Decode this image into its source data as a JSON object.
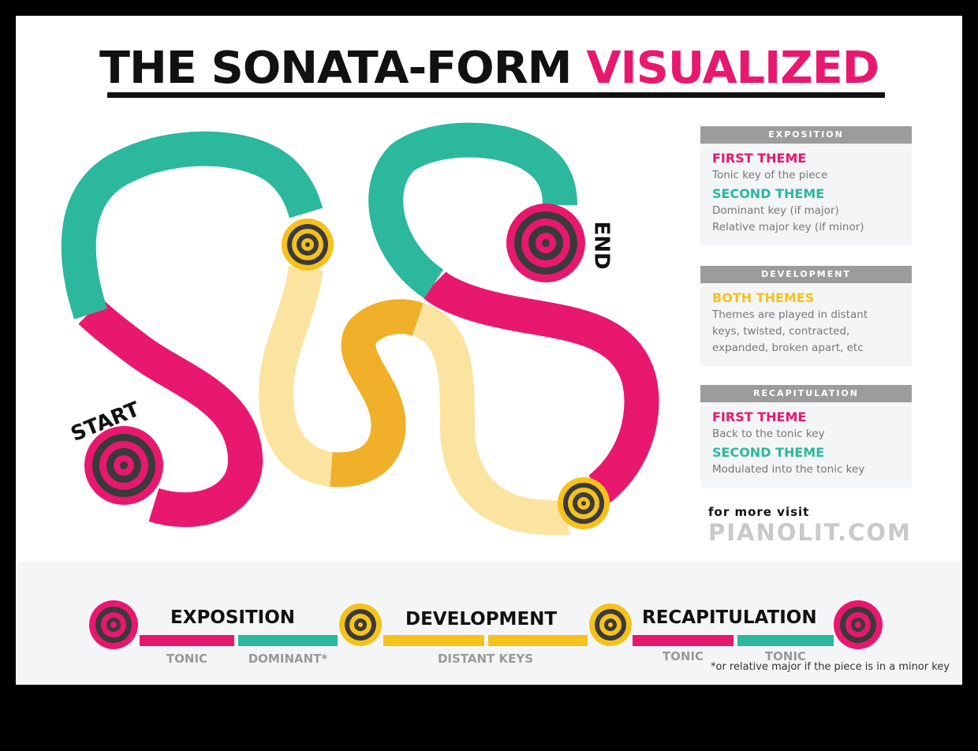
{
  "title": {
    "main": "THE SONATA-FORM ",
    "accent": "VISUALIZED"
  },
  "path_labels": {
    "start": "START",
    "end": "END"
  },
  "colors": {
    "pink": "#e8186e",
    "teal": "#2bb89d",
    "yellow": "#f5c21b",
    "light_yellow": "#fbe3a0",
    "orange": "#f0b02a",
    "dark": "#3a3a3a",
    "grey": "#9c9c9c"
  },
  "panels": [
    {
      "header": "EXPOSITION",
      "items": [
        {
          "heading": "FIRST THEME",
          "color": "pink",
          "text": "Tonic key of the piece"
        },
        {
          "heading": "SECOND THEME",
          "color": "teal",
          "text": "Dominant key (if major)\nRelative major key (if minor)"
        }
      ]
    },
    {
      "header": "DEVELOPMENT",
      "items": [
        {
          "heading": "BOTH THEMES",
          "color": "yellow",
          "text": "Themes are played in distant keys, twisted, contracted, expanded, broken apart, etc"
        }
      ]
    },
    {
      "header": "RECAPITULATION",
      "items": [
        {
          "heading": "FIRST THEME",
          "color": "pink",
          "text": "Back to the tonic key"
        },
        {
          "heading": "SECOND THEME",
          "color": "teal",
          "text": "Modulated into the tonic key"
        }
      ]
    }
  ],
  "visit": {
    "prefix": "for more visit",
    "site": "PIANOLIT.COM"
  },
  "timeline": {
    "phases": [
      "EXPOSITION",
      "DEVELOPMENT",
      "RECAPITULATION"
    ],
    "labels": [
      "TONIC",
      "DOMINANT*",
      "DISTANT KEYS",
      "TONIC",
      "TONIC"
    ],
    "footnote": "*or relative major if the piece is in a minor key"
  }
}
